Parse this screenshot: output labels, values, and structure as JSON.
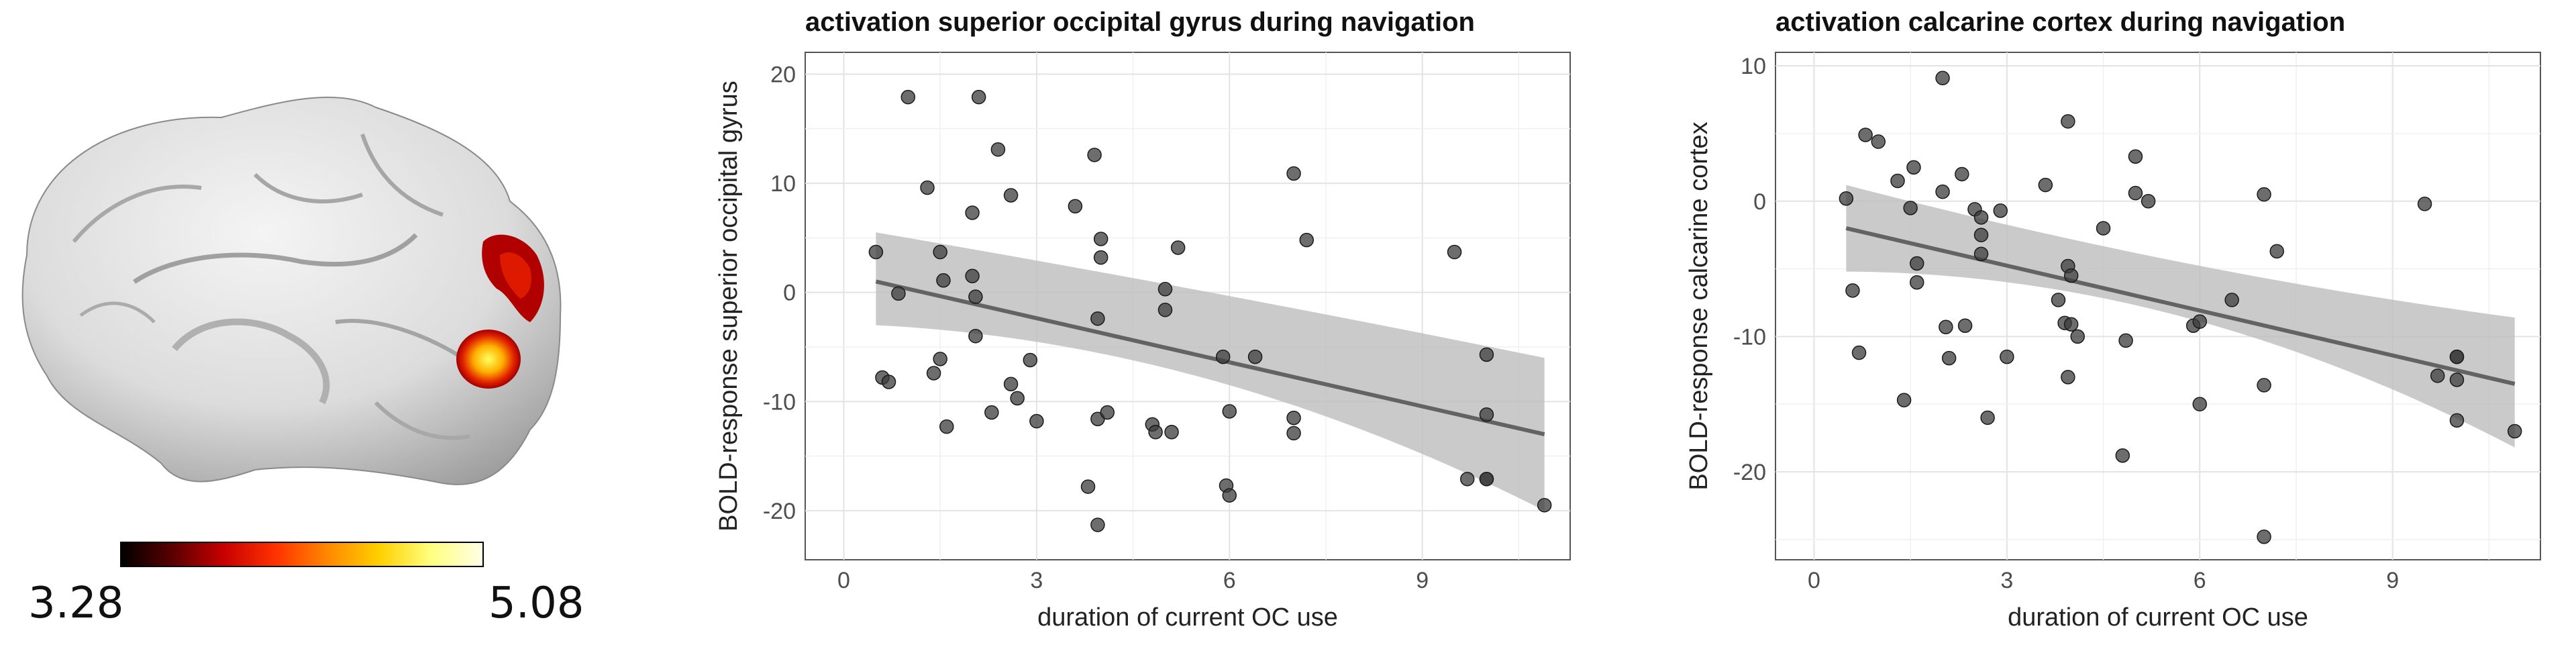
{
  "brain": {
    "colorbar_min": "3.28",
    "colorbar_max": "5.08",
    "colorbar_colors": [
      "#000000",
      "#5a0000",
      "#c80000",
      "#ff3300",
      "#ff8800",
      "#ffd000",
      "#ffff80",
      "#ffffe8"
    ]
  },
  "chart_data": [
    {
      "type": "scatter",
      "title": "activation superior occipital gyrus during navigation",
      "xlabel": "duration of current OC use",
      "ylabel": "BOLD-response superior occipital gyrus",
      "xlim": [
        -0.6,
        11.3
      ],
      "ylim": [
        -24.5,
        22
      ],
      "xticks": [
        0,
        3,
        6,
        9
      ],
      "yticks": [
        -20,
        -10,
        0,
        10,
        20
      ],
      "grid": true,
      "point_color": "#3c3c3c",
      "line_color": "#636363",
      "band_color": "#bdbdbd",
      "x": [
        0.5,
        0.6,
        0.7,
        0.85,
        1.0,
        1.3,
        1.4,
        1.5,
        1.5,
        1.55,
        1.6,
        2.0,
        2.0,
        2.05,
        2.05,
        2.1,
        2.3,
        2.4,
        2.6,
        2.6,
        2.7,
        2.9,
        3.0,
        3.6,
        3.8,
        3.9,
        3.95,
        3.95,
        3.95,
        4.0,
        4.0,
        4.1,
        4.8,
        4.85,
        5.0,
        5.0,
        5.1,
        5.2,
        5.9,
        5.95,
        6.0,
        6.0,
        6.4,
        7.0,
        7.0,
        7.0,
        7.2,
        9.5,
        9.7,
        10.0,
        10.0,
        10.0,
        10.0,
        10.9
      ],
      "y": [
        3.7,
        -7.8,
        -8.2,
        -0.1,
        17.9,
        9.6,
        -7.4,
        3.7,
        -6.1,
        1.1,
        -12.3,
        7.3,
        1.5,
        -0.4,
        -4.0,
        17.9,
        -11.0,
        13.1,
        8.9,
        -8.4,
        -9.7,
        -6.2,
        -11.8,
        7.9,
        -17.8,
        12.6,
        -2.4,
        -11.6,
        -21.3,
        4.9,
        3.2,
        -11.0,
        -12.1,
        -12.8,
        0.3,
        -1.6,
        -12.8,
        4.1,
        -5.9,
        -17.7,
        -18.6,
        -10.9,
        -5.9,
        10.9,
        -11.5,
        -12.9,
        4.8,
        3.7,
        -17.1,
        -5.7,
        -11.2,
        -17.1,
        -17.1,
        -19.5
      ],
      "fit": {
        "x0": 0.5,
        "y0": 1.0,
        "x1": 10.9,
        "y1": -13.0,
        "band_lower": [
          -3.0,
          -8.0,
          -20.0
        ],
        "band_upper": [
          5.5,
          0.0,
          -6.0
        ]
      }
    },
    {
      "type": "scatter",
      "title": "activation calcarine cortex during navigation",
      "xlabel": "duration of current OC use",
      "ylabel": "BOLD-response calcarine cortex",
      "xlim": [
        -0.6,
        11.3
      ],
      "ylim": [
        -26.5,
        11
      ],
      "xticks": [
        0,
        3,
        6,
        9
      ],
      "yticks": [
        -20,
        -10,
        0,
        10
      ],
      "grid": true,
      "point_color": "#3c3c3c",
      "line_color": "#636363",
      "band_color": "#bdbdbd",
      "x": [
        0.5,
        0.6,
        0.7,
        0.8,
        1.0,
        1.3,
        1.4,
        1.5,
        1.55,
        1.6,
        1.6,
        2.0,
        2.0,
        2.05,
        2.1,
        2.3,
        2.35,
        2.5,
        2.6,
        2.6,
        2.6,
        2.7,
        2.9,
        3.0,
        3.6,
        3.8,
        3.9,
        3.95,
        3.95,
        3.95,
        4.0,
        4.0,
        4.1,
        4.5,
        4.8,
        4.85,
        5.0,
        5.0,
        5.2,
        5.9,
        6.0,
        6.0,
        6.5,
        7.0,
        7.0,
        7.0,
        7.2,
        9.5,
        9.7,
        10.0,
        10.0,
        10.0,
        10.0,
        10.9
      ],
      "y": [
        0.2,
        -6.6,
        -11.2,
        4.9,
        4.4,
        1.5,
        -14.7,
        -0.5,
        2.5,
        -6.0,
        -4.6,
        9.1,
        0.7,
        -9.3,
        -11.6,
        2.0,
        -9.2,
        -0.6,
        -1.2,
        -2.5,
        -3.9,
        -16.0,
        -0.7,
        -11.5,
        1.2,
        -7.3,
        -9.0,
        5.9,
        -4.8,
        -13.0,
        -9.1,
        -5.5,
        -10.0,
        -2.0,
        -18.8,
        -10.3,
        3.3,
        0.6,
        0.0,
        -9.2,
        -8.9,
        -15.0,
        -7.3,
        0.5,
        -13.6,
        -24.8,
        -3.7,
        -0.2,
        -12.9,
        -11.5,
        -13.2,
        -16.2,
        -11.5,
        -17.0
      ],
      "fit": {
        "x0": 0.5,
        "y0": -2.0,
        "x1": 10.9,
        "y1": -13.5,
        "band_lower": [
          -5.2,
          -8.5,
          -18.2
        ],
        "band_upper": [
          1.2,
          -4.5,
          -8.6
        ]
      }
    }
  ]
}
